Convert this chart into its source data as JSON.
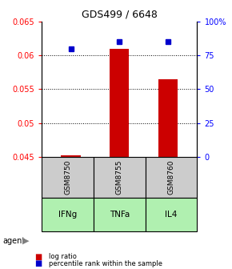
{
  "title": "GDS499 / 6648",
  "categories": [
    "GSM8750",
    "GSM8755",
    "GSM8760"
  ],
  "agents": [
    "IFNg",
    "TNFa",
    "IL4"
  ],
  "bar_values": [
    0.0452,
    0.061,
    0.0565
  ],
  "bar_base": 0.045,
  "percentile_values": [
    80,
    85,
    85
  ],
  "ylim_left": [
    0.045,
    0.065
  ],
  "ylim_right": [
    0,
    100
  ],
  "yticks_left": [
    0.045,
    0.05,
    0.055,
    0.06,
    0.065
  ],
  "yticks_right": [
    0,
    25,
    50,
    75,
    100
  ],
  "ytick_labels_left": [
    "0.045",
    "0.05",
    "0.055",
    "0.06",
    "0.065"
  ],
  "ytick_labels_right": [
    "0",
    "25",
    "50",
    "75",
    "100%"
  ],
  "gridlines": [
    0.05,
    0.055,
    0.06
  ],
  "bar_color": "#cc0000",
  "dot_color": "#0000cc",
  "agent_colors": [
    "#aaffaa",
    "#aaffaa",
    "#aaffaa"
  ],
  "gsm_bg_color": "#cccccc",
  "legend_items": [
    "log ratio",
    "percentile rank within the sample"
  ]
}
